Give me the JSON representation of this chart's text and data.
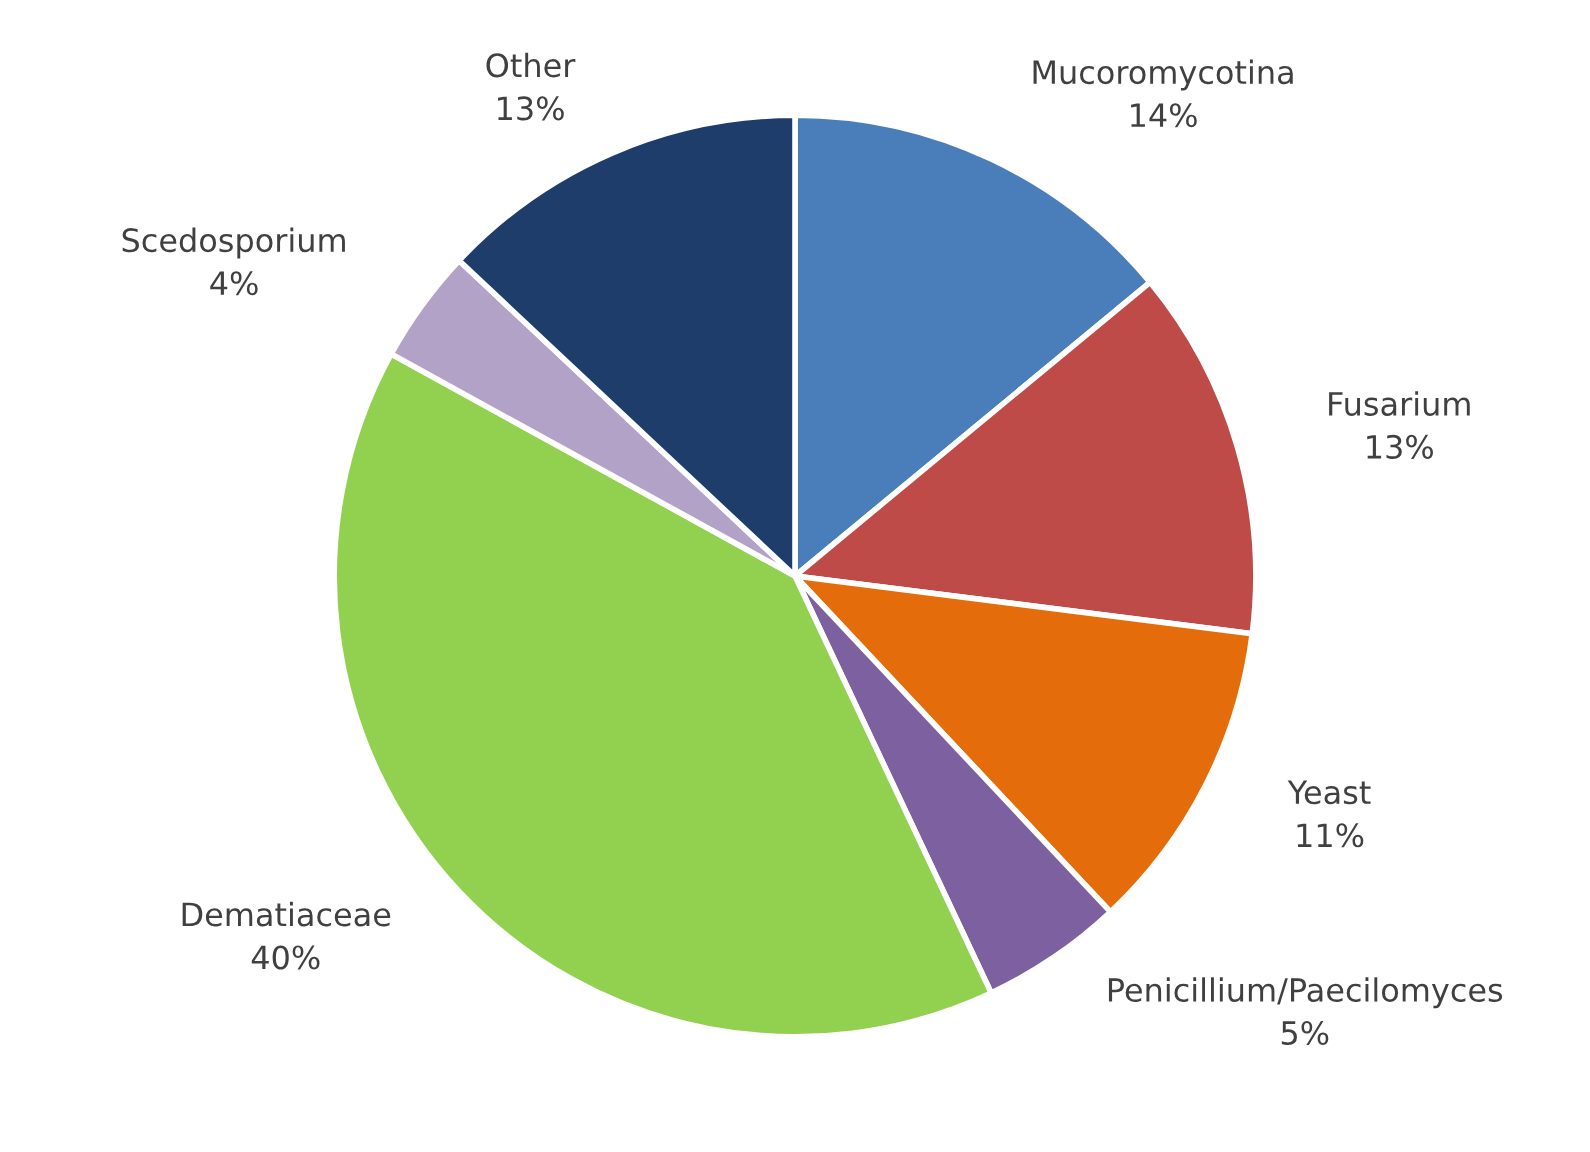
{
  "chart_data": {
    "type": "pie",
    "categories": [
      "Mucoromycotina",
      "Fusarium",
      "Yeast",
      "Penicillium/Paecilomyces",
      "Dematiaceae",
      "Scedosporium",
      "Other"
    ],
    "values": [
      14,
      13,
      11,
      5,
      40,
      4,
      13
    ],
    "value_labels": [
      "14%",
      "13%",
      "11%",
      "5%",
      "40%",
      "4%",
      "13%"
    ],
    "colors": [
      "#4a7ebb",
      "#be4b48",
      "#e46c0a",
      "#7d60a0",
      "#92d050",
      "#b3a2c7",
      "#1f3d6b"
    ]
  }
}
